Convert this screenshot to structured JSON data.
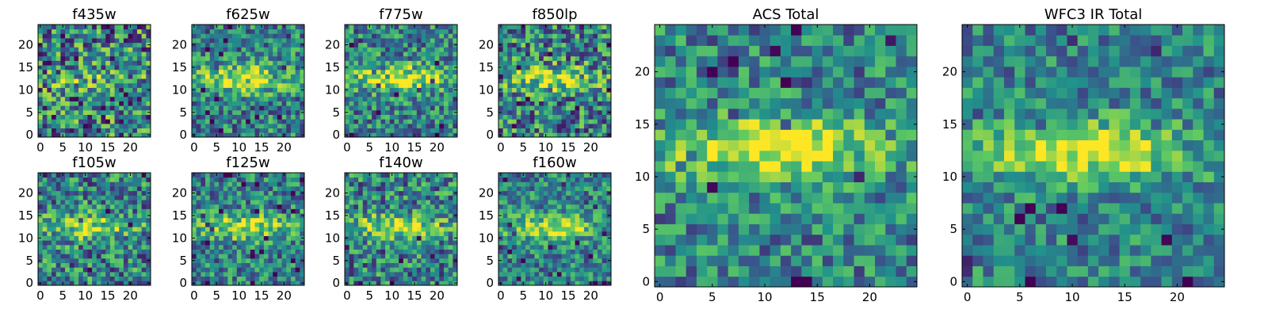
{
  "figure": {
    "colormap": "viridis",
    "colormap_stops": [
      "#440154",
      "#3b528b",
      "#21918c",
      "#5ec962",
      "#fde725"
    ]
  },
  "chart_data": [
    {
      "type": "heatmap",
      "title": "f435w",
      "grid_size": 25,
      "xlim": [
        -0.5,
        24.5
      ],
      "ylim": [
        -0.5,
        24.5
      ],
      "xticks": [
        0,
        5,
        10,
        15,
        20
      ],
      "yticks": [
        0,
        5,
        10,
        15,
        20
      ],
      "origin": "lower",
      "grid": false,
      "seed": 11,
      "noise": 0.62,
      "band_strength": 0.15
    },
    {
      "type": "heatmap",
      "title": "f625w",
      "grid_size": 25,
      "xlim": [
        -0.5,
        24.5
      ],
      "ylim": [
        -0.5,
        24.5
      ],
      "xticks": [
        0,
        5,
        10,
        15,
        20
      ],
      "yticks": [
        0,
        5,
        10,
        15,
        20
      ],
      "origin": "lower",
      "grid": false,
      "seed": 23,
      "noise": 0.45,
      "band_strength": 0.55
    },
    {
      "type": "heatmap",
      "title": "f775w",
      "grid_size": 25,
      "xlim": [
        -0.5,
        24.5
      ],
      "ylim": [
        -0.5,
        24.5
      ],
      "xticks": [
        0,
        5,
        10,
        15,
        20
      ],
      "yticks": [
        0,
        5,
        10,
        15,
        20
      ],
      "origin": "lower",
      "grid": false,
      "seed": 37,
      "noise": 0.45,
      "band_strength": 0.55
    },
    {
      "type": "heatmap",
      "title": "f850lp",
      "grid_size": 25,
      "xlim": [
        -0.5,
        24.5
      ],
      "ylim": [
        -0.5,
        24.5
      ],
      "xticks": [
        0,
        5,
        10,
        15,
        20
      ],
      "yticks": [
        0,
        5,
        10,
        15,
        20
      ],
      "origin": "lower",
      "grid": false,
      "seed": 41,
      "noise": 0.55,
      "band_strength": 0.4
    },
    {
      "type": "heatmap",
      "title": "f105w",
      "grid_size": 25,
      "xlim": [
        -0.5,
        24.5
      ],
      "ylim": [
        -0.5,
        24.5
      ],
      "xticks": [
        0,
        5,
        10,
        15,
        20
      ],
      "yticks": [
        0,
        5,
        10,
        15,
        20
      ],
      "origin": "lower",
      "grid": false,
      "seed": 53,
      "noise": 0.5,
      "band_strength": 0.4
    },
    {
      "type": "heatmap",
      "title": "f125w",
      "grid_size": 25,
      "xlim": [
        -0.5,
        24.5
      ],
      "ylim": [
        -0.5,
        24.5
      ],
      "xticks": [
        0,
        5,
        10,
        15,
        20
      ],
      "yticks": [
        0,
        5,
        10,
        15,
        20
      ],
      "origin": "lower",
      "grid": false,
      "seed": 67,
      "noise": 0.42,
      "band_strength": 0.45
    },
    {
      "type": "heatmap",
      "title": "f140w",
      "grid_size": 25,
      "xlim": [
        -0.5,
        24.5
      ],
      "ylim": [
        -0.5,
        24.5
      ],
      "xticks": [
        0,
        5,
        10,
        15,
        20
      ],
      "yticks": [
        0,
        5,
        10,
        15,
        20
      ],
      "origin": "lower",
      "grid": false,
      "seed": 79,
      "noise": 0.48,
      "band_strength": 0.45
    },
    {
      "type": "heatmap",
      "title": "f160w",
      "grid_size": 25,
      "xlim": [
        -0.5,
        24.5
      ],
      "ylim": [
        -0.5,
        24.5
      ],
      "xticks": [
        0,
        5,
        10,
        15,
        20
      ],
      "yticks": [
        0,
        5,
        10,
        15,
        20
      ],
      "origin": "lower",
      "grid": false,
      "seed": 83,
      "noise": 0.4,
      "band_strength": 0.45
    },
    {
      "type": "heatmap",
      "title": "ACS Total",
      "grid_size": 25,
      "xlim": [
        -0.5,
        24.5
      ],
      "ylim": [
        -0.5,
        24.5
      ],
      "xticks": [
        0,
        5,
        10,
        15,
        20
      ],
      "yticks": [
        0,
        5,
        10,
        15,
        20
      ],
      "origin": "lower",
      "grid": false,
      "seed": 97,
      "noise": 0.4,
      "band_strength": 0.6
    },
    {
      "type": "heatmap",
      "title": "WFC3 IR Total",
      "grid_size": 25,
      "xlim": [
        -0.5,
        24.5
      ],
      "ylim": [
        -0.5,
        24.5
      ],
      "xticks": [
        0,
        5,
        10,
        15,
        20
      ],
      "yticks": [
        0,
        5,
        10,
        15,
        20
      ],
      "origin": "lower",
      "grid": false,
      "seed": 101,
      "noise": 0.36,
      "band_strength": 0.55
    }
  ]
}
